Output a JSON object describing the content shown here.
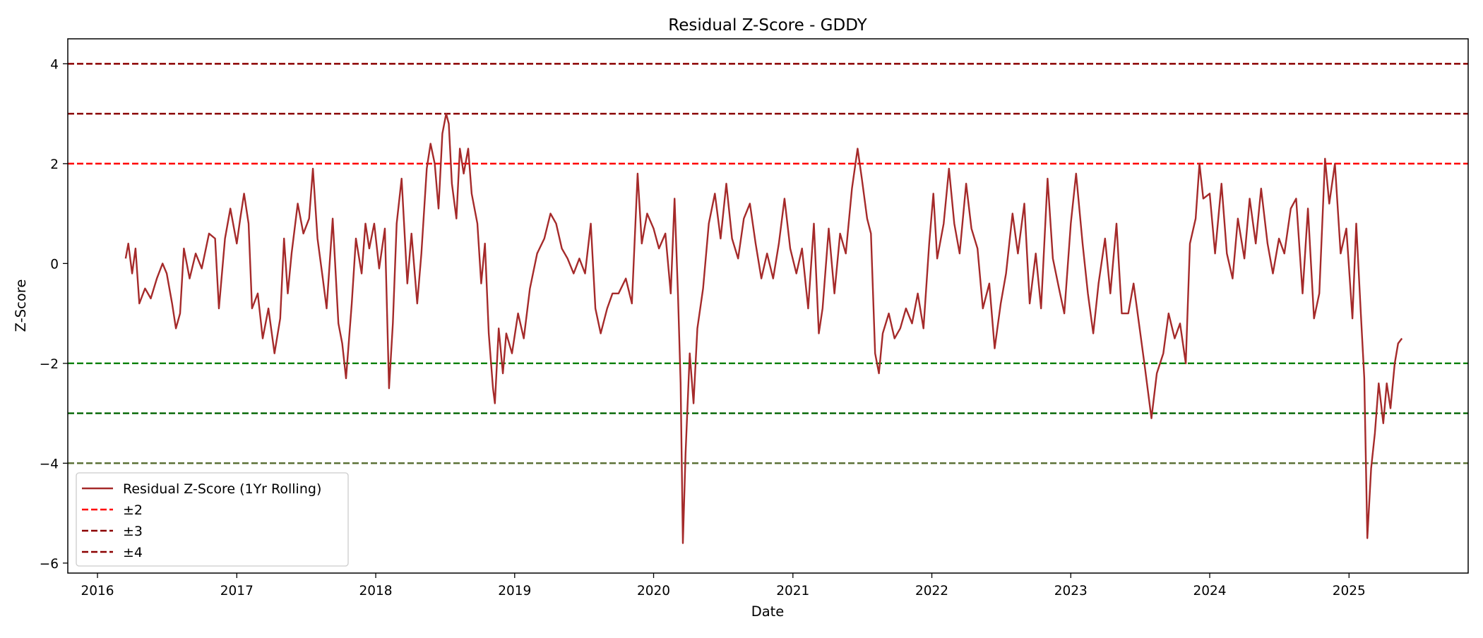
{
  "chart_data": {
    "type": "line",
    "title": "Residual Z-Score - GDDY",
    "xlabel": "Date",
    "ylabel": "Z-Score",
    "xlim": [
      "2015-10-15",
      "2025-11-10"
    ],
    "ylim": [
      -6.2,
      4.5
    ],
    "x_ticks": [
      "2016",
      "2017",
      "2018",
      "2019",
      "2020",
      "2021",
      "2022",
      "2023",
      "2024",
      "2025"
    ],
    "y_ticks": [
      {
        "value": 4,
        "label": "4"
      },
      {
        "value": 2,
        "label": "2"
      },
      {
        "value": 0,
        "label": "0"
      },
      {
        "value": -2,
        "label": "−2"
      },
      {
        "value": -4,
        "label": "−4"
      },
      {
        "value": -6,
        "label": "−6"
      }
    ],
    "grid": false,
    "series": [
      {
        "name": "Residual Z-Score (1Yr Rolling)",
        "color": "#a52a2a",
        "line_style": "solid",
        "points": [
          [
            "2016-03-15",
            0.1
          ],
          [
            "2016-03-22",
            0.4
          ],
          [
            "2016-04-01",
            -0.2
          ],
          [
            "2016-04-10",
            0.3
          ],
          [
            "2016-04-20",
            -0.8
          ],
          [
            "2016-05-05",
            -0.5
          ],
          [
            "2016-05-20",
            -0.7
          ],
          [
            "2016-06-05",
            -0.3
          ],
          [
            "2016-06-20",
            0.0
          ],
          [
            "2016-07-01",
            -0.2
          ],
          [
            "2016-07-15",
            -0.8
          ],
          [
            "2016-07-25",
            -1.3
          ],
          [
            "2016-08-05",
            -1.0
          ],
          [
            "2016-08-15",
            0.3
          ],
          [
            "2016-08-30",
            -0.3
          ],
          [
            "2016-09-15",
            0.2
          ],
          [
            "2016-10-01",
            -0.1
          ],
          [
            "2016-10-20",
            0.6
          ],
          [
            "2016-11-05",
            0.5
          ],
          [
            "2016-11-15",
            -0.9
          ],
          [
            "2016-12-01",
            0.5
          ],
          [
            "2016-12-15",
            1.1
          ],
          [
            "2017-01-01",
            0.4
          ],
          [
            "2017-01-10",
            0.9
          ],
          [
            "2017-01-20",
            1.4
          ],
          [
            "2017-02-01",
            0.8
          ],
          [
            "2017-02-10",
            -0.9
          ],
          [
            "2017-02-25",
            -0.6
          ],
          [
            "2017-03-10",
            -1.5
          ],
          [
            "2017-03-25",
            -0.9
          ],
          [
            "2017-04-10",
            -1.8
          ],
          [
            "2017-04-25",
            -1.1
          ],
          [
            "2017-05-05",
            0.5
          ],
          [
            "2017-05-15",
            -0.6
          ],
          [
            "2017-05-25",
            0.2
          ],
          [
            "2017-06-10",
            1.2
          ],
          [
            "2017-06-25",
            0.6
          ],
          [
            "2017-07-10",
            0.9
          ],
          [
            "2017-07-20",
            1.9
          ],
          [
            "2017-08-01",
            0.5
          ],
          [
            "2017-08-15",
            -0.3
          ],
          [
            "2017-08-25",
            -0.9
          ],
          [
            "2017-09-10",
            0.9
          ],
          [
            "2017-09-25",
            -1.2
          ],
          [
            "2017-10-05",
            -1.6
          ],
          [
            "2017-10-15",
            -2.3
          ],
          [
            "2017-10-30",
            -0.8
          ],
          [
            "2017-11-10",
            0.5
          ],
          [
            "2017-11-25",
            -0.2
          ],
          [
            "2017-12-05",
            0.8
          ],
          [
            "2017-12-15",
            0.3
          ],
          [
            "2017-12-28",
            0.8
          ],
          [
            "2018-01-10",
            -0.1
          ],
          [
            "2018-01-25",
            0.7
          ],
          [
            "2018-02-05",
            -2.5
          ],
          [
            "2018-02-15",
            -1.2
          ],
          [
            "2018-02-25",
            0.8
          ],
          [
            "2018-03-10",
            1.7
          ],
          [
            "2018-03-25",
            -0.4
          ],
          [
            "2018-04-05",
            0.6
          ],
          [
            "2018-04-20",
            -0.8
          ],
          [
            "2018-05-01",
            0.2
          ],
          [
            "2018-05-15",
            1.9
          ],
          [
            "2018-05-25",
            2.4
          ],
          [
            "2018-06-05",
            2.0
          ],
          [
            "2018-06-15",
            1.1
          ],
          [
            "2018-06-25",
            2.6
          ],
          [
            "2018-07-05",
            3.0
          ],
          [
            "2018-07-12",
            2.8
          ],
          [
            "2018-07-20",
            1.6
          ],
          [
            "2018-08-01",
            0.9
          ],
          [
            "2018-08-10",
            2.3
          ],
          [
            "2018-08-20",
            1.8
          ],
          [
            "2018-09-01",
            2.3
          ],
          [
            "2018-09-10",
            1.4
          ],
          [
            "2018-09-25",
            0.8
          ],
          [
            "2018-10-05",
            -0.4
          ],
          [
            "2018-10-15",
            0.4
          ],
          [
            "2018-10-25",
            -1.4
          ],
          [
            "2018-11-05",
            -2.5
          ],
          [
            "2018-11-10",
            -2.8
          ],
          [
            "2018-11-20",
            -1.3
          ],
          [
            "2018-12-01",
            -2.2
          ],
          [
            "2018-12-10",
            -1.4
          ],
          [
            "2018-12-25",
            -1.8
          ],
          [
            "2019-01-10",
            -1.0
          ],
          [
            "2019-01-25",
            -1.5
          ],
          [
            "2019-02-10",
            -0.5
          ],
          [
            "2019-03-01",
            0.2
          ],
          [
            "2019-03-20",
            0.5
          ],
          [
            "2019-04-05",
            1.0
          ],
          [
            "2019-04-20",
            0.8
          ],
          [
            "2019-05-05",
            0.3
          ],
          [
            "2019-05-20",
            0.1
          ],
          [
            "2019-06-05",
            -0.2
          ],
          [
            "2019-06-20",
            0.1
          ],
          [
            "2019-07-05",
            -0.2
          ],
          [
            "2019-07-20",
            0.8
          ],
          [
            "2019-08-01",
            -0.9
          ],
          [
            "2019-08-15",
            -1.4
          ],
          [
            "2019-09-01",
            -0.9
          ],
          [
            "2019-09-15",
            -0.6
          ],
          [
            "2019-10-01",
            -0.6
          ],
          [
            "2019-10-20",
            -0.3
          ],
          [
            "2019-11-05",
            -0.8
          ],
          [
            "2019-11-20",
            1.8
          ],
          [
            "2019-12-01",
            0.4
          ],
          [
            "2019-12-15",
            1.0
          ],
          [
            "2020-01-01",
            0.7
          ],
          [
            "2020-01-15",
            0.3
          ],
          [
            "2020-02-01",
            0.6
          ],
          [
            "2020-02-15",
            -0.6
          ],
          [
            "2020-02-25",
            1.3
          ],
          [
            "2020-03-05",
            -0.6
          ],
          [
            "2020-03-12",
            -2.4
          ],
          [
            "2020-03-18",
            -5.6
          ],
          [
            "2020-03-25",
            -3.8
          ],
          [
            "2020-04-05",
            -1.8
          ],
          [
            "2020-04-15",
            -2.8
          ],
          [
            "2020-04-25",
            -1.3
          ],
          [
            "2020-05-10",
            -0.5
          ],
          [
            "2020-05-25",
            0.8
          ],
          [
            "2020-06-10",
            1.4
          ],
          [
            "2020-06-25",
            0.5
          ],
          [
            "2020-07-10",
            1.6
          ],
          [
            "2020-07-25",
            0.5
          ],
          [
            "2020-08-10",
            0.1
          ],
          [
            "2020-08-25",
            0.9
          ],
          [
            "2020-09-10",
            1.2
          ],
          [
            "2020-09-25",
            0.4
          ],
          [
            "2020-10-10",
            -0.3
          ],
          [
            "2020-10-25",
            0.2
          ],
          [
            "2020-11-10",
            -0.3
          ],
          [
            "2020-11-25",
            0.4
          ],
          [
            "2020-12-10",
            1.3
          ],
          [
            "2020-12-25",
            0.3
          ],
          [
            "2021-01-10",
            -0.2
          ],
          [
            "2021-01-25",
            0.3
          ],
          [
            "2021-02-10",
            -0.9
          ],
          [
            "2021-02-25",
            0.8
          ],
          [
            "2021-03-10",
            -1.4
          ],
          [
            "2021-03-20",
            -0.9
          ],
          [
            "2021-04-05",
            0.7
          ],
          [
            "2021-04-20",
            -0.6
          ],
          [
            "2021-05-05",
            0.6
          ],
          [
            "2021-05-20",
            0.2
          ],
          [
            "2021-06-05",
            1.5
          ],
          [
            "2021-06-20",
            2.3
          ],
          [
            "2021-07-01",
            1.7
          ],
          [
            "2021-07-15",
            0.9
          ],
          [
            "2021-07-25",
            0.6
          ],
          [
            "2021-08-05",
            -1.8
          ],
          [
            "2021-08-15",
            -2.2
          ],
          [
            "2021-08-25",
            -1.4
          ],
          [
            "2021-09-10",
            -1.0
          ],
          [
            "2021-09-25",
            -1.5
          ],
          [
            "2021-10-10",
            -1.3
          ],
          [
            "2021-10-25",
            -0.9
          ],
          [
            "2021-11-10",
            -1.2
          ],
          [
            "2021-11-25",
            -0.6
          ],
          [
            "2021-12-10",
            -1.3
          ],
          [
            "2021-12-25",
            0.4
          ],
          [
            "2022-01-05",
            1.4
          ],
          [
            "2022-01-15",
            0.1
          ],
          [
            "2022-02-01",
            0.8
          ],
          [
            "2022-02-15",
            1.9
          ],
          [
            "2022-03-01",
            0.8
          ],
          [
            "2022-03-15",
            0.2
          ],
          [
            "2022-04-01",
            1.6
          ],
          [
            "2022-04-15",
            0.7
          ],
          [
            "2022-05-01",
            0.3
          ],
          [
            "2022-05-15",
            -0.9
          ],
          [
            "2022-06-01",
            -0.4
          ],
          [
            "2022-06-15",
            -1.7
          ],
          [
            "2022-07-01",
            -0.8
          ],
          [
            "2022-07-15",
            -0.2
          ],
          [
            "2022-08-01",
            1.0
          ],
          [
            "2022-08-15",
            0.2
          ],
          [
            "2022-09-01",
            1.2
          ],
          [
            "2022-09-15",
            -0.8
          ],
          [
            "2022-10-01",
            0.2
          ],
          [
            "2022-10-15",
            -0.9
          ],
          [
            "2022-11-01",
            1.7
          ],
          [
            "2022-11-15",
            0.1
          ],
          [
            "2022-12-01",
            -0.5
          ],
          [
            "2022-12-15",
            -1.0
          ],
          [
            "2023-01-01",
            0.8
          ],
          [
            "2023-01-15",
            1.8
          ],
          [
            "2023-02-01",
            0.4
          ],
          [
            "2023-02-15",
            -0.6
          ],
          [
            "2023-03-01",
            -1.4
          ],
          [
            "2023-03-15",
            -0.4
          ],
          [
            "2023-04-01",
            0.5
          ],
          [
            "2023-04-15",
            -0.6
          ],
          [
            "2023-05-01",
            0.8
          ],
          [
            "2023-05-15",
            -1.0
          ],
          [
            "2023-06-01",
            -1.0
          ],
          [
            "2023-06-15",
            -0.4
          ],
          [
            "2023-07-01",
            -1.3
          ],
          [
            "2023-07-15",
            -2.1
          ],
          [
            "2023-08-01",
            -3.1
          ],
          [
            "2023-08-15",
            -2.2
          ],
          [
            "2023-09-01",
            -1.8
          ],
          [
            "2023-09-15",
            -1.0
          ],
          [
            "2023-10-01",
            -1.5
          ],
          [
            "2023-10-15",
            -1.2
          ],
          [
            "2023-10-30",
            -2.0
          ],
          [
            "2023-11-10",
            0.4
          ],
          [
            "2023-11-25",
            0.9
          ],
          [
            "2023-12-05",
            2.0
          ],
          [
            "2023-12-15",
            1.3
          ],
          [
            "2024-01-01",
            1.4
          ],
          [
            "2024-01-15",
            0.2
          ],
          [
            "2024-02-01",
            1.6
          ],
          [
            "2024-02-15",
            0.2
          ],
          [
            "2024-03-01",
            -0.3
          ],
          [
            "2024-03-15",
            0.9
          ],
          [
            "2024-04-01",
            0.1
          ],
          [
            "2024-04-15",
            1.3
          ],
          [
            "2024-05-01",
            0.4
          ],
          [
            "2024-05-15",
            1.5
          ],
          [
            "2024-06-01",
            0.4
          ],
          [
            "2024-06-15",
            -0.2
          ],
          [
            "2024-07-01",
            0.5
          ],
          [
            "2024-07-15",
            0.2
          ],
          [
            "2024-08-01",
            1.1
          ],
          [
            "2024-08-15",
            1.3
          ],
          [
            "2024-09-01",
            -0.6
          ],
          [
            "2024-09-15",
            1.1
          ],
          [
            "2024-10-01",
            -1.1
          ],
          [
            "2024-10-15",
            -0.6
          ],
          [
            "2024-10-30",
            2.1
          ],
          [
            "2024-11-10",
            1.2
          ],
          [
            "2024-11-25",
            2.0
          ],
          [
            "2024-12-10",
            0.2
          ],
          [
            "2024-12-25",
            0.7
          ],
          [
            "2025-01-10",
            -1.1
          ],
          [
            "2025-01-20",
            0.8
          ],
          [
            "2025-02-01",
            -1.0
          ],
          [
            "2025-02-10",
            -2.3
          ],
          [
            "2025-02-18",
            -5.5
          ],
          [
            "2025-02-28",
            -4.1
          ],
          [
            "2025-03-10",
            -3.4
          ],
          [
            "2025-03-20",
            -2.4
          ],
          [
            "2025-04-01",
            -3.2
          ],
          [
            "2025-04-10",
            -2.4
          ],
          [
            "2025-04-20",
            -2.9
          ],
          [
            "2025-05-01",
            -2.0
          ],
          [
            "2025-05-10",
            -1.6
          ],
          [
            "2025-05-20",
            -1.5
          ]
        ]
      }
    ],
    "reference_lines": [
      {
        "value": 2,
        "color": "#ff0000",
        "line_style": "dashed"
      },
      {
        "value": 3,
        "color": "#8b0000",
        "line_style": "dashed"
      },
      {
        "value": 4,
        "color": "#8b0000",
        "line_style": "dashed"
      },
      {
        "value": -2,
        "color": "#008000",
        "line_style": "dashed"
      },
      {
        "value": -3,
        "color": "#006400",
        "line_style": "dashed"
      },
      {
        "value": -4,
        "color": "#556b2f",
        "line_style": "dashed"
      }
    ],
    "legend": {
      "location": "lower-left",
      "entries": [
        {
          "label": "Residual Z-Score (1Yr Rolling)",
          "color": "#a52a2a",
          "line_style": "solid"
        },
        {
          "label": "±2",
          "color": "#ff0000",
          "line_style": "dashed"
        },
        {
          "label": "±3",
          "color": "#8b0000",
          "line_style": "dashed"
        },
        {
          "label": "±4",
          "color": "#8b0000",
          "line_style": "dashed"
        }
      ]
    }
  }
}
